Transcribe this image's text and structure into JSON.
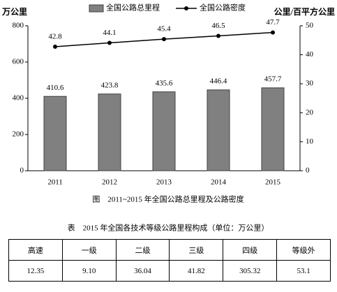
{
  "chart_data": {
    "type": "bar",
    "y_label": "万公里",
    "y2_label": "公里/百平方公里",
    "caption": "图　2011~2015 年全国公路总里程及公路密度",
    "categories": [
      "2011",
      "2012",
      "2013",
      "2014",
      "2015"
    ],
    "series": [
      {
        "name": "全国公路总里程",
        "type": "bar",
        "color": "#808080",
        "values": [
          410.6,
          423.8,
          435.6,
          446.4,
          457.7
        ]
      },
      {
        "name": "全国公路密度",
        "type": "line",
        "axis": "y2",
        "color": "#000000",
        "values": [
          42.8,
          44.1,
          45.4,
          46.5,
          47.7
        ]
      }
    ],
    "ylim": [
      0,
      800
    ],
    "yticks": [
      0,
      200,
      400,
      600,
      800
    ],
    "y2lim": [
      0,
      50
    ],
    "y2ticks": [
      0,
      10,
      20,
      30,
      40,
      50
    ]
  },
  "table": {
    "title": "表　2015 年全国各技术等级公路里程构成（单位：万公里）",
    "header": [
      "高速",
      "一级",
      "二级",
      "三级",
      "四级",
      "等级外"
    ],
    "rows": [
      [
        "12.35",
        "9.10",
        "36.04",
        "41.82",
        "305.32",
        "53.1"
      ]
    ]
  }
}
